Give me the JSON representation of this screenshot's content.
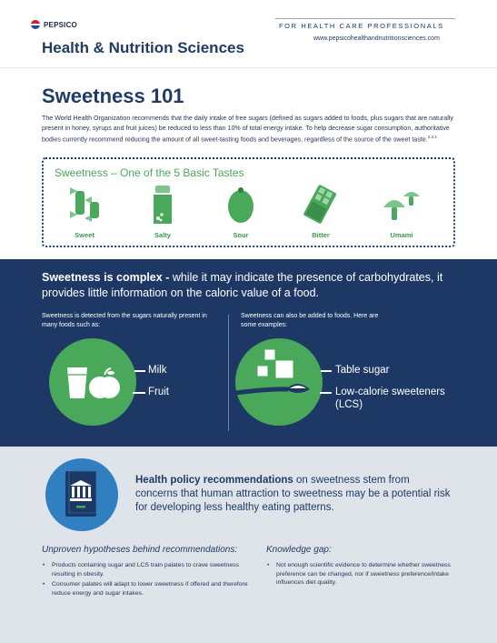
{
  "header": {
    "logo_text": "PEPSICO",
    "brand_title": "Health & Nutrition Sciences",
    "audience": "FOR HEALTH CARE PROFESSIONALS",
    "url": "www.pepsicohealthandnutritionsciences.com"
  },
  "intro": {
    "title": "Sweetness 101",
    "paragraph": "The World Health Organization recommends that the daily intake of free sugars (defined as sugars added to foods, plus sugars that are naturally present in honey, syrups and fruit juices) be reduced to less than 10% of total energy intake. To help decrease sugar consumption, authoritative bodies currently recommend reducing the amount of all sweet-tasting foods and beverages, regardless of the source of the sweet taste.",
    "ref1": "1",
    "ref2": "2,3,4"
  },
  "tastes": {
    "title": "Sweetness – One of the 5 Basic Tastes",
    "items": [
      {
        "label": "Sweet",
        "icon": "candy-icon"
      },
      {
        "label": "Salty",
        "icon": "salt-shaker-icon"
      },
      {
        "label": "Sour",
        "icon": "lemon-icon"
      },
      {
        "label": "Bitter",
        "icon": "chocolate-bar-icon"
      },
      {
        "label": "Umami",
        "icon": "mushroom-icon"
      }
    ]
  },
  "complex": {
    "lead": "Sweetness is complex -",
    "rest": " while it may indicate the presence of carbohydrates, it provides little information on the caloric value of a food.",
    "left_note": "Sweetness is detected from the sugars naturally present in many foods such as:",
    "left_items": [
      "Milk",
      "Fruit"
    ],
    "right_note": "Sweetness can also be added to foods. Here are some examples:",
    "right_items": [
      "Table sugar",
      "Low-calorie sweeteners (LCS)"
    ]
  },
  "policy": {
    "lead": "Health policy recommendations",
    "rest": " on sweetness stem from concerns that human attraction to sweetness may be a potential risk for developing less healthy eating patterns.",
    "left_heading": "Unproven hypotheses behind recommendations:",
    "left_bullets": [
      "Products containing sugar and LCS train palates to crave sweetness resulting in obesity.",
      "Consumer palates will adapt to lower sweetness if offered and therefore reduce energy and sugar intakes."
    ],
    "right_heading": "Knowledge gap:",
    "right_bullets": [
      "Not enough scientific evidence to determine whether sweetness preference can be changed, nor if sweetness preference/intake influences diet quality."
    ]
  },
  "colors": {
    "navy": "#1e3866",
    "green": "#4aa85a",
    "blue": "#2f7fc1",
    "gray": "#dfe3ea"
  }
}
